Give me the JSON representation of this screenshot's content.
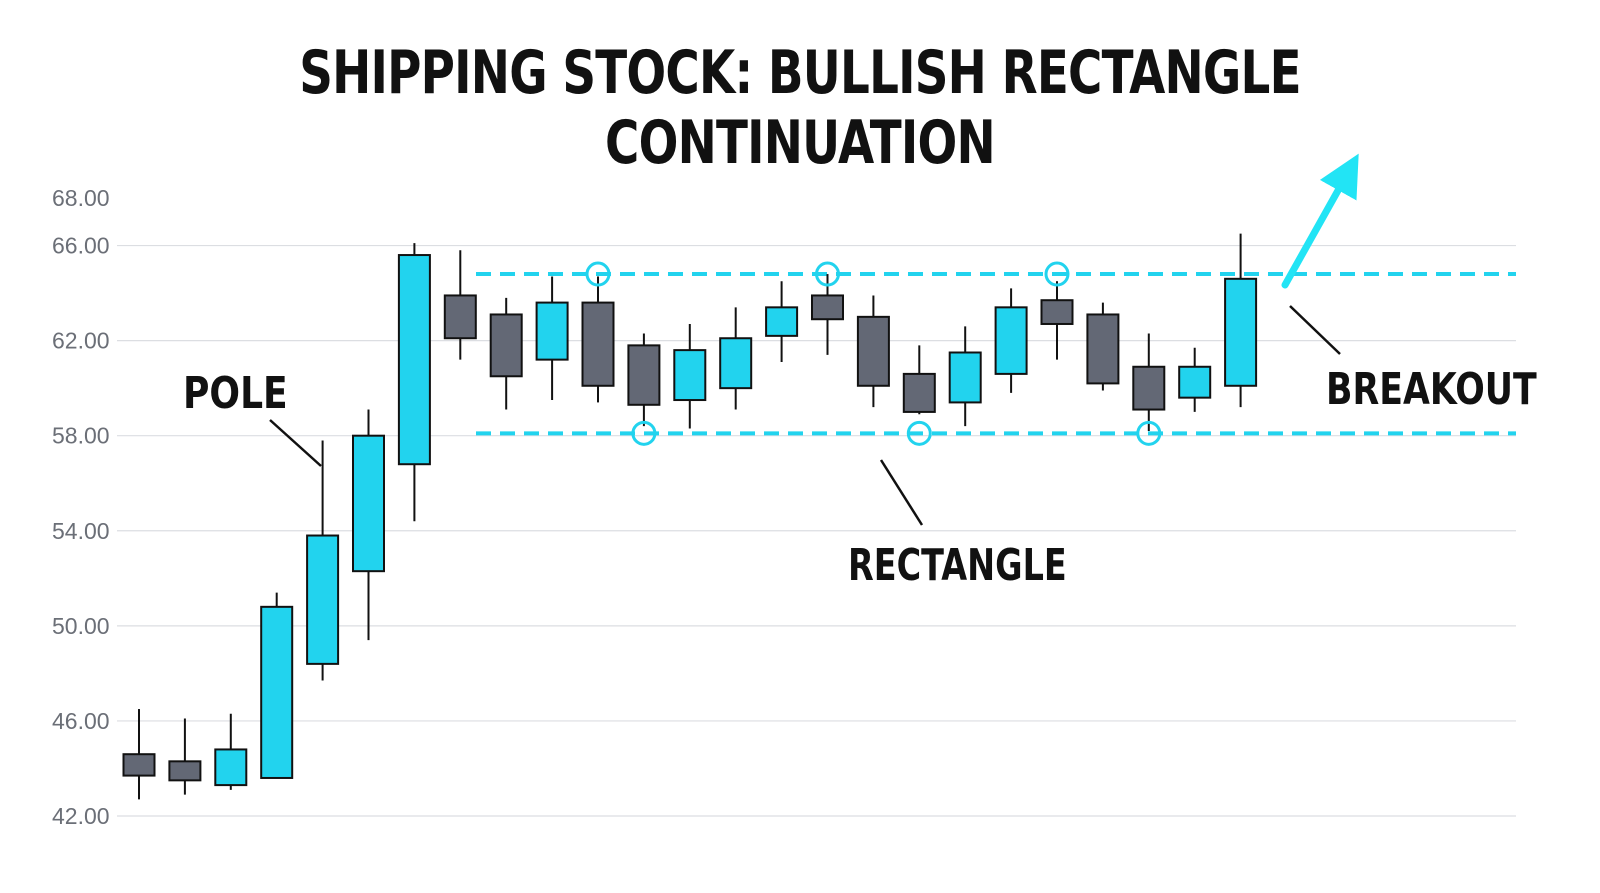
{
  "chart_data": {
    "type": "candlestick",
    "title": "SHIPPING STOCK: BULLISH RECTANGLE CONTINUATION",
    "xlabel": "",
    "ylabel": "",
    "ylim": [
      42,
      68
    ],
    "yticks": [
      "68.00",
      "66.00",
      "62.00",
      "58.00",
      "54.00",
      "50.00",
      "46.00",
      "42.00"
    ],
    "ytick_values": [
      68,
      66,
      62,
      58,
      54,
      50,
      46,
      42
    ],
    "grid": true,
    "colors": {
      "up": "#22d3ee",
      "down": "#636875",
      "level": "#22d3ee",
      "arrow": "#22e4f5",
      "wick": "#111111"
    },
    "candles": [
      {
        "o": 44.6,
        "h": 46.5,
        "l": 42.7,
        "c": 43.7
      },
      {
        "o": 44.3,
        "h": 46.1,
        "l": 42.9,
        "c": 43.5
      },
      {
        "o": 43.3,
        "h": 46.3,
        "l": 43.1,
        "c": 44.8
      },
      {
        "o": 43.6,
        "h": 51.4,
        "l": 43.6,
        "c": 50.8
      },
      {
        "o": 48.4,
        "h": 57.8,
        "l": 47.7,
        "c": 53.8
      },
      {
        "o": 52.3,
        "h": 59.1,
        "l": 49.4,
        "c": 58.0
      },
      {
        "o": 56.8,
        "h": 66.1,
        "l": 54.4,
        "c": 65.6
      },
      {
        "o": 63.9,
        "h": 65.8,
        "l": 61.2,
        "c": 62.1
      },
      {
        "o": 63.1,
        "h": 63.8,
        "l": 59.1,
        "c": 60.5
      },
      {
        "o": 61.2,
        "h": 64.7,
        "l": 59.5,
        "c": 63.6
      },
      {
        "o": 63.6,
        "h": 64.7,
        "l": 59.4,
        "c": 60.1
      },
      {
        "o": 61.8,
        "h": 62.3,
        "l": 58.4,
        "c": 59.3
      },
      {
        "o": 59.5,
        "h": 62.7,
        "l": 58.3,
        "c": 61.6
      },
      {
        "o": 60.0,
        "h": 63.4,
        "l": 59.1,
        "c": 62.1
      },
      {
        "o": 62.2,
        "h": 64.5,
        "l": 61.1,
        "c": 63.4
      },
      {
        "o": 63.9,
        "h": 64.8,
        "l": 61.4,
        "c": 62.9
      },
      {
        "o": 63.0,
        "h": 63.9,
        "l": 59.2,
        "c": 60.1
      },
      {
        "o": 60.6,
        "h": 61.8,
        "l": 58.9,
        "c": 59.0
      },
      {
        "o": 59.4,
        "h": 62.6,
        "l": 58.4,
        "c": 61.5
      },
      {
        "o": 60.6,
        "h": 64.2,
        "l": 59.8,
        "c": 63.4
      },
      {
        "o": 63.7,
        "h": 64.5,
        "l": 61.2,
        "c": 62.7
      },
      {
        "o": 63.1,
        "h": 63.6,
        "l": 59.9,
        "c": 60.2
      },
      {
        "o": 60.9,
        "h": 62.3,
        "l": 58.2,
        "c": 59.1
      },
      {
        "o": 59.6,
        "h": 61.7,
        "l": 59.0,
        "c": 60.9
      },
      {
        "o": 60.1,
        "h": 66.5,
        "l": 59.2,
        "c": 64.6
      }
    ],
    "resistance": 64.8,
    "support": 58.1,
    "touch_points": [
      {
        "candle": 10,
        "level": "resistance"
      },
      {
        "candle": 15,
        "level": "resistance"
      },
      {
        "candle": 20,
        "level": "resistance"
      },
      {
        "candle": 11,
        "level": "support"
      },
      {
        "candle": 17,
        "level": "support"
      },
      {
        "candle": 22,
        "level": "support"
      }
    ],
    "annotations": {
      "pole": "POLE",
      "rectangle": "RECTANGLE",
      "breakout": "BREAKOUT"
    }
  }
}
